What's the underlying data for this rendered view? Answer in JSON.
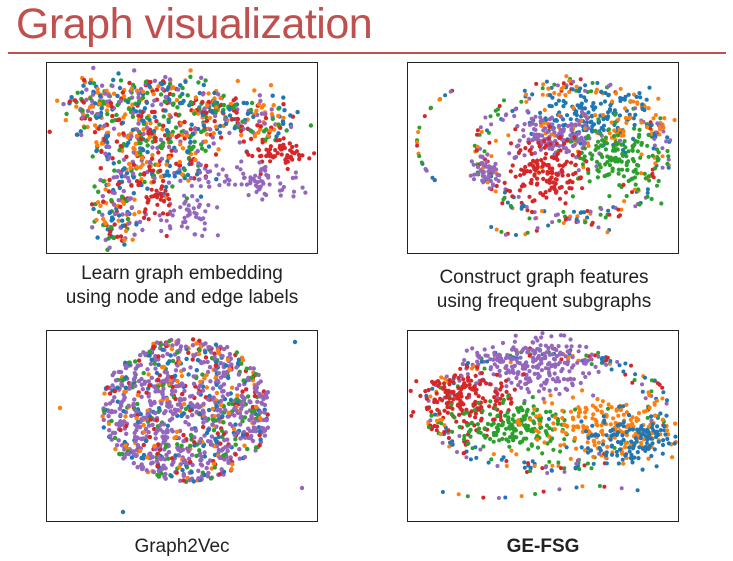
{
  "slide": {
    "title": "Graph visualization"
  },
  "colors": {
    "accent": "#c0504d",
    "blue": "#1f77b4",
    "orange": "#ff7f0e",
    "green": "#2ca02c",
    "red": "#d62728",
    "purple": "#9467bd"
  },
  "panels": [
    {
      "caption_line1": "Learn graph embedding",
      "caption_line2": "using node and edge labels"
    },
    {
      "caption_line1": "Construct graph features",
      "caption_line2": "using frequent subgraphs"
    },
    {
      "caption_line1": "Graph2Vec",
      "caption_line2": ""
    },
    {
      "caption_line1": "GE-FSG",
      "caption_line2": ""
    }
  ],
  "chart_data": [
    {
      "type": "scatter",
      "series": [
        "blue",
        "orange",
        "green",
        "red",
        "purple"
      ]
    },
    {
      "type": "scatter",
      "series": [
        "blue",
        "orange",
        "green",
        "red",
        "purple"
      ]
    },
    {
      "type": "scatter",
      "series": [
        "blue",
        "orange",
        "green",
        "red",
        "purple"
      ]
    },
    {
      "type": "scatter",
      "series": [
        "blue",
        "orange",
        "green",
        "red",
        "purple"
      ]
    }
  ]
}
